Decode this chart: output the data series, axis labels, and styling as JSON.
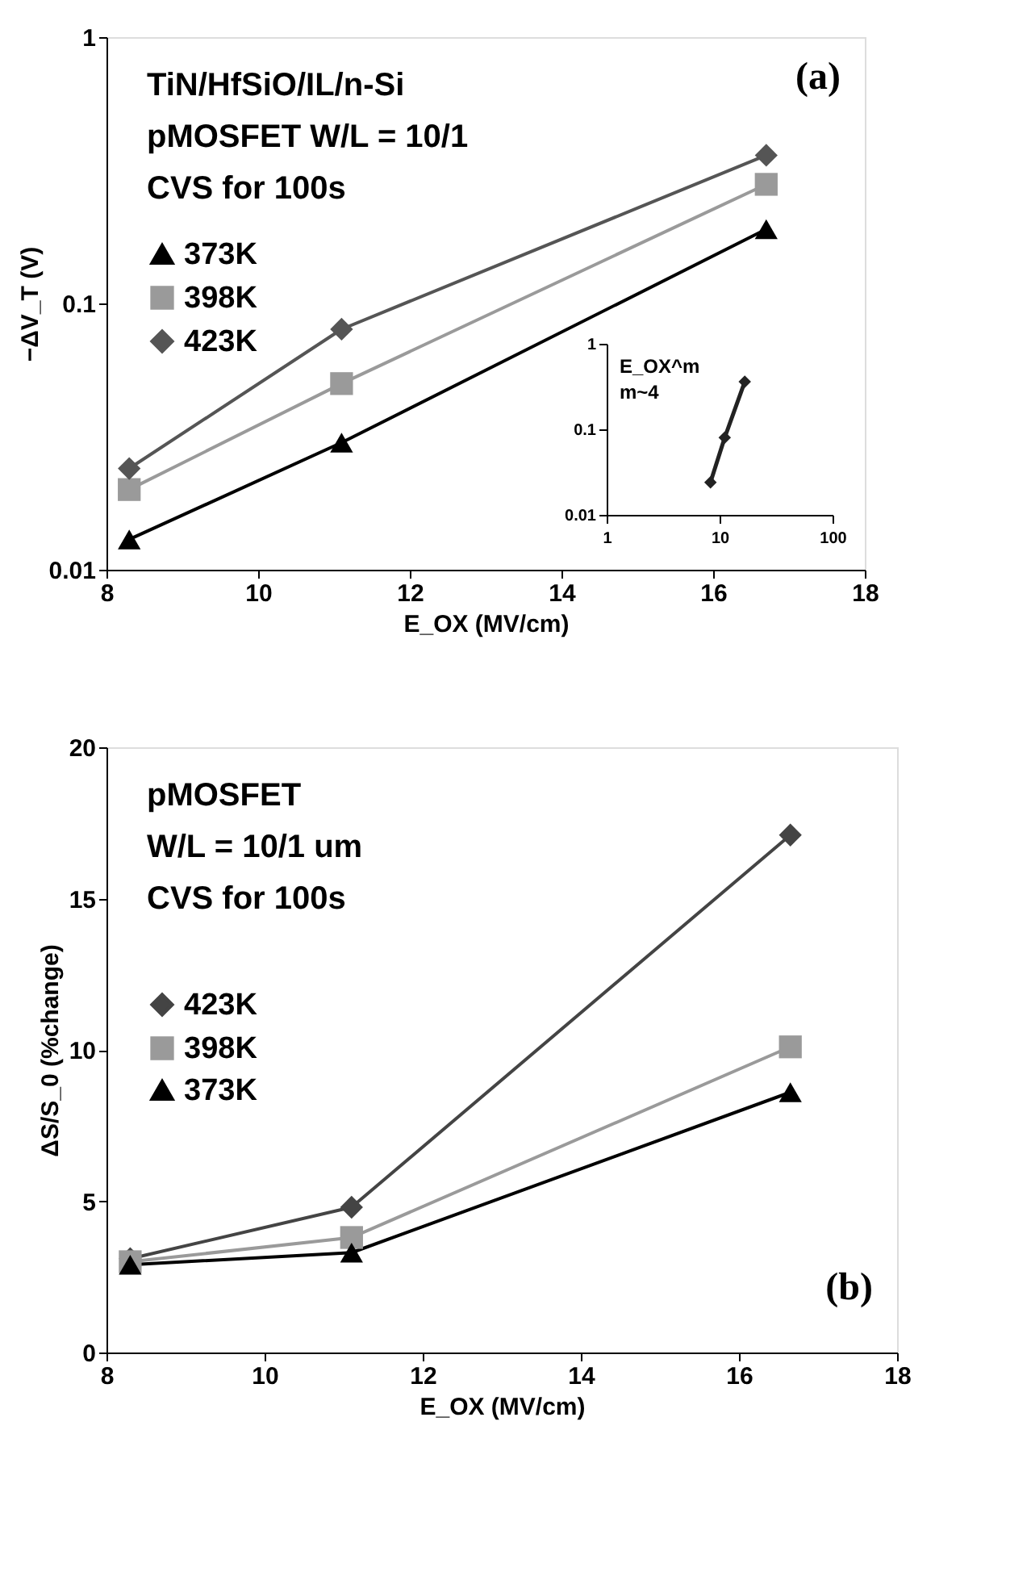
{
  "chart_data": [
    {
      "type": "line",
      "xlabel": "E_OX (MV/cm)",
      "ylabel": "−ΔV_T (V)",
      "log": "y",
      "grid": false,
      "legend": "top left",
      "line_style": "solid",
      "annotations": [
        "TiN/HfSiO/IL/n-Si",
        "pMOSFET W/L = 10/1",
        "CVS for 100s",
        "(a)"
      ],
      "x": [
        8.3,
        11.1,
        16.7
      ],
      "xlim": [
        8,
        18
      ],
      "xticks": [
        8,
        10,
        12,
        14,
        16,
        18
      ],
      "ylim": [
        0.01,
        1
      ],
      "yticks": [
        0.01,
        0.1,
        1
      ],
      "series": [
        {
          "name": "373K",
          "color": "#000000",
          "marker": "triangle",
          "values": [
            0.013,
            0.03,
            0.19
          ]
        },
        {
          "name": "398K",
          "color": "#9a9a9a",
          "marker": "square",
          "values": [
            0.02,
            0.05,
            0.28
          ]
        },
        {
          "name": "423K",
          "color": "#555555",
          "marker": "diamond",
          "values": [
            0.024,
            0.08,
            0.36
          ]
        }
      ]
    },
    {
      "type": "line",
      "log": "xy",
      "grid": false,
      "legend": false,
      "marker": "diamond",
      "line_style": "solid",
      "annotations": [
        "E_OX^m",
        "m~4"
      ],
      "x": [
        8.3,
        11.1,
        16.7
      ],
      "xlim": [
        1,
        100
      ],
      "xticks": [
        1,
        10,
        100
      ],
      "ylim": [
        0.01,
        1
      ],
      "yticks": [
        0.01,
        0.1,
        1
      ],
      "series": [
        {
          "color": "#222222",
          "values": [
            0.024,
            0.08,
            0.36
          ]
        }
      ]
    },
    {
      "type": "line",
      "xlabel": "E_OX (MV/cm)",
      "ylabel": "ΔS/S_0 (%change)",
      "grid": false,
      "legend": "left",
      "line_style": "solid",
      "annotations": [
        "pMOSFET",
        "W/L = 10/1 um",
        "CVS for 100s",
        "(b)"
      ],
      "x": [
        8.3,
        11.1,
        16.65
      ],
      "xlim": [
        8,
        18
      ],
      "xticks": [
        8,
        10,
        12,
        14,
        16,
        18
      ],
      "ylim": [
        0,
        20
      ],
      "yticks": [
        0,
        5,
        10,
        15,
        20
      ],
      "series": [
        {
          "name": "423K",
          "color": "#444444",
          "marker": "diamond",
          "values": [
            3.1,
            4.8,
            17.1
          ]
        },
        {
          "name": "398K",
          "color": "#9a9a9a",
          "marker": "square",
          "values": [
            3.0,
            3.8,
            10.1
          ]
        },
        {
          "name": "373K",
          "color": "#000000",
          "marker": "triangle",
          "values": [
            2.9,
            3.3,
            8.6
          ]
        }
      ]
    }
  ]
}
